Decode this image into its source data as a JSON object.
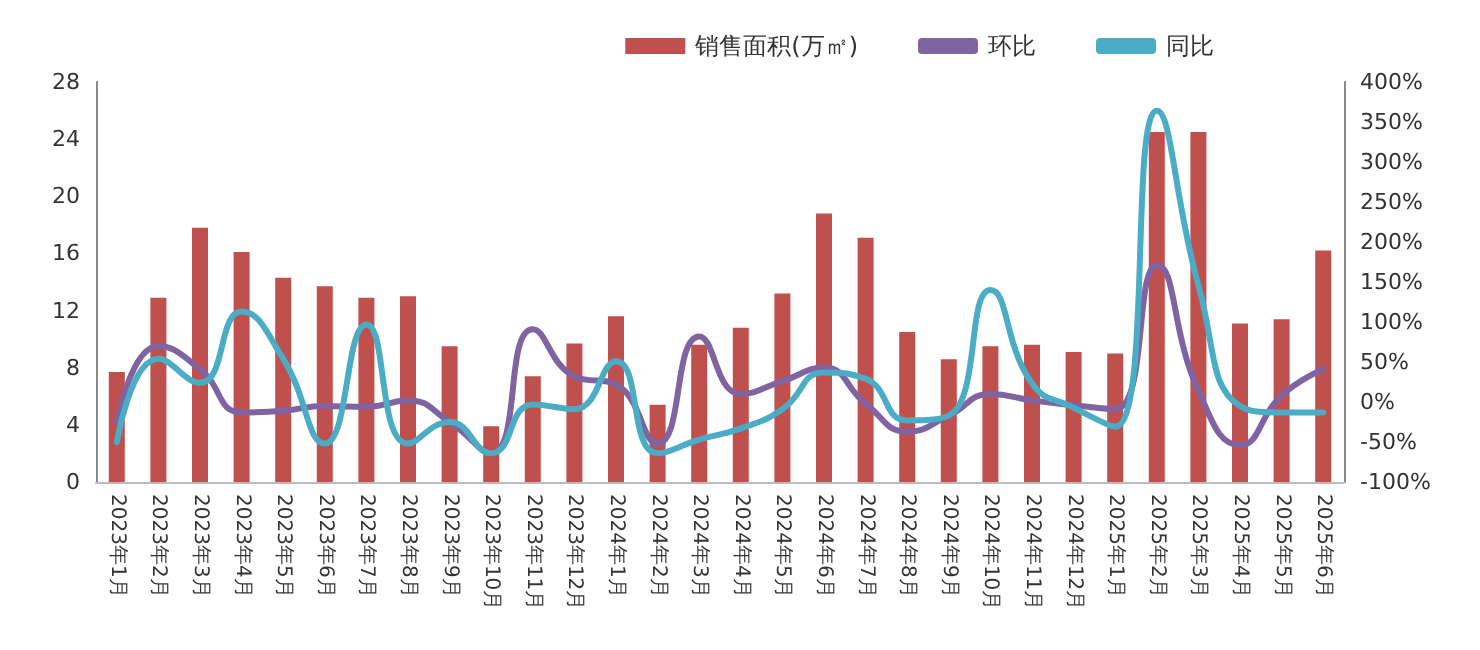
{
  "chart_data": {
    "type": "bar",
    "categories": [
      "2023年1月",
      "2023年2月",
      "2023年3月",
      "2023年4月",
      "2023年5月",
      "2023年6月",
      "2023年7月",
      "2023年8月",
      "2023年9月",
      "2023年10月",
      "2023年11月",
      "2023年12月",
      "2024年1月",
      "2024年2月",
      "2024年3月",
      "2024年4月",
      "2024年5月",
      "2024年6月",
      "2024年7月",
      "2024年8月",
      "2024年9月",
      "2024年10月",
      "2024年11月",
      "2024年12月",
      "2025年1月",
      "2025年2月",
      "2025年3月",
      "2025年4月",
      "2025年5月",
      "2025年6月"
    ],
    "series": [
      {
        "name": "销售面积(万㎡)",
        "color": "#c0504d",
        "values": [
          7.7,
          12.9,
          17.8,
          16.1,
          14.3,
          13.7,
          12.9,
          13.0,
          9.5,
          3.9,
          7.4,
          9.7,
          11.6,
          5.4,
          9.6,
          10.8,
          13.2,
          18.8,
          17.1,
          10.5,
          8.6,
          9.5,
          9.6,
          9.1,
          9.0,
          24.5,
          24.5,
          11.1,
          11.4,
          16.2
        ]
      },
      {
        "name": "环比",
        "type": "line",
        "axis": "y2",
        "color": "#8064a2",
        "values": [
          -25,
          70,
          41,
          -13,
          -11,
          -5,
          -6,
          2,
          -25,
          -64,
          91,
          32,
          22,
          -52,
          82,
          10,
          26,
          43,
          -2,
          -37,
          -17,
          10,
          2,
          -4,
          -9,
          171,
          14,
          -54,
          8,
          41
        ]
      },
      {
        "name": "同比",
        "type": "line",
        "axis": "y2",
        "color": "#4bacc6",
        "values": [
          -50,
          54,
          24,
          113,
          54,
          -52,
          97,
          -52,
          -25,
          -64,
          -3,
          -9,
          51,
          -64,
          -47,
          -33,
          -9,
          37,
          29,
          -23,
          -17,
          140,
          23,
          -7,
          -31,
          364,
          146,
          -5,
          -13,
          -13
        ]
      }
    ],
    "ylim": [
      0,
      28
    ],
    "yticks": [
      0,
      4,
      8,
      12,
      16,
      20,
      24,
      28
    ],
    "y2lim": [
      -100,
      400
    ],
    "y2ticks": [
      {
        "value": -100,
        "label": "-100%"
      },
      {
        "value": -50,
        "label": "-50%"
      },
      {
        "value": 0,
        "label": "0%"
      },
      {
        "value": 50,
        "label": "50%"
      },
      {
        "value": 100,
        "label": "100%"
      },
      {
        "value": 150,
        "label": "150%"
      },
      {
        "value": 200,
        "label": "200%"
      },
      {
        "value": 250,
        "label": "250%"
      },
      {
        "value": 300,
        "label": "300%"
      },
      {
        "value": 350,
        "label": "350%"
      },
      {
        "value": 400,
        "label": "400%"
      }
    ],
    "legend": "top right",
    "grid": false,
    "marker": "none",
    "line_style": "solid"
  }
}
